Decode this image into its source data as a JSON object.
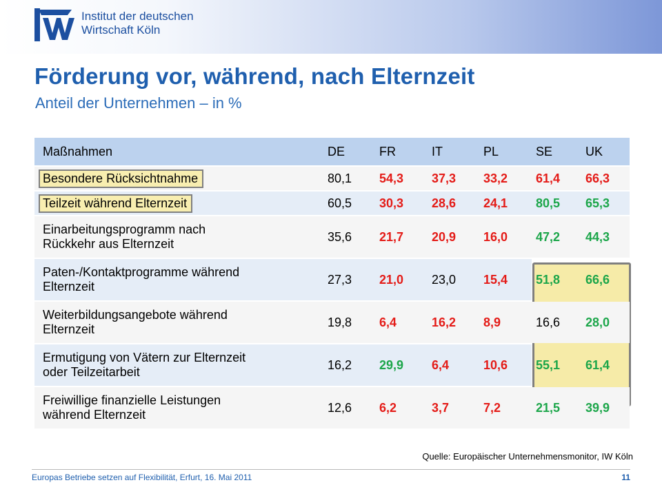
{
  "header": {
    "org_line1": "Institut der deutschen",
    "org_line2": "Wirtschaft Köln"
  },
  "title": "Förderung vor, während, nach Elternzeit",
  "subtitle": "Anteil der Unternehmen – in %",
  "table": {
    "columns": [
      "Maßnahmen",
      "DE",
      "FR",
      "IT",
      "PL",
      "SE",
      "UK"
    ],
    "rows": [
      {
        "label": "Besondere Rücksichtnahme",
        "cells": [
          {
            "v": "80,1",
            "c": "plain"
          },
          {
            "v": "54,3",
            "c": "red"
          },
          {
            "v": "37,3",
            "c": "red"
          },
          {
            "v": "33,2",
            "c": "red"
          },
          {
            "v": "61,4",
            "c": "red"
          },
          {
            "v": "66,3",
            "c": "red"
          }
        ]
      },
      {
        "label": "Teilzeit während Elternzeit",
        "cells": [
          {
            "v": "60,5",
            "c": "plain"
          },
          {
            "v": "30,3",
            "c": "red"
          },
          {
            "v": "28,6",
            "c": "red"
          },
          {
            "v": "24,1",
            "c": "red"
          },
          {
            "v": "80,5",
            "c": "green"
          },
          {
            "v": "65,3",
            "c": "green"
          }
        ]
      },
      {
        "label_l1": "Einarbeitungsprogramm nach",
        "label_l2": "Rückkehr aus Elternzeit",
        "cells": [
          {
            "v": "35,6",
            "c": "plain"
          },
          {
            "v": "21,7",
            "c": "red"
          },
          {
            "v": "20,9",
            "c": "red"
          },
          {
            "v": "16,0",
            "c": "red"
          },
          {
            "v": "47,2",
            "c": "green"
          },
          {
            "v": "44,3",
            "c": "green"
          }
        ]
      },
      {
        "label_l1": "Paten-/Kontaktprogramme während",
        "label_l2": "Elternzeit",
        "cells": [
          {
            "v": "27,3",
            "c": "plain"
          },
          {
            "v": "21,0",
            "c": "red"
          },
          {
            "v": "23,0",
            "c": "plain"
          },
          {
            "v": "15,4",
            "c": "red"
          },
          {
            "v": "51,8",
            "c": "green"
          },
          {
            "v": "66,6",
            "c": "green"
          }
        ]
      },
      {
        "label_l1": "Weiterbildungsangebote während",
        "label_l2": "Elternzeit",
        "cells": [
          {
            "v": "19,8",
            "c": "plain"
          },
          {
            "v": "6,4",
            "c": "red"
          },
          {
            "v": "16,2",
            "c": "red"
          },
          {
            "v": "8,9",
            "c": "red"
          },
          {
            "v": "16,6",
            "c": "plain"
          },
          {
            "v": "28,0",
            "c": "green"
          }
        ]
      },
      {
        "label_l1": "Ermutigung von Vätern zur Elternzeit",
        "label_l2": "oder Teilzeitarbeit",
        "cells": [
          {
            "v": "16,2",
            "c": "plain"
          },
          {
            "v": "29,9",
            "c": "green"
          },
          {
            "v": "6,4",
            "c": "red"
          },
          {
            "v": "10,6",
            "c": "red"
          },
          {
            "v": "55,1",
            "c": "green"
          },
          {
            "v": "61,4",
            "c": "green"
          }
        ]
      },
      {
        "label_l1": "Freiwillige finanzielle Leistungen",
        "label_l2": "während Elternzeit",
        "cells": [
          {
            "v": "12,6",
            "c": "plain"
          },
          {
            "v": "6,2",
            "c": "red"
          },
          {
            "v": "3,7",
            "c": "red"
          },
          {
            "v": "7,2",
            "c": "red"
          },
          {
            "v": "21,5",
            "c": "green"
          },
          {
            "v": "39,9",
            "c": "green"
          }
        ]
      }
    ]
  },
  "source": "Quelle: Europäischer Unternehmensmonitor, IW Köln",
  "footer": {
    "text": "Europas Betriebe setzen auf Flexibilität, Erfurt, 16. Mai 2011",
    "page": "11"
  },
  "colors": {
    "title": "#1f5fae",
    "header_row": "#bcd2ee",
    "red_value": "#e41b17",
    "green_value": "#1ca64a",
    "highlight": "#f6eba8"
  }
}
